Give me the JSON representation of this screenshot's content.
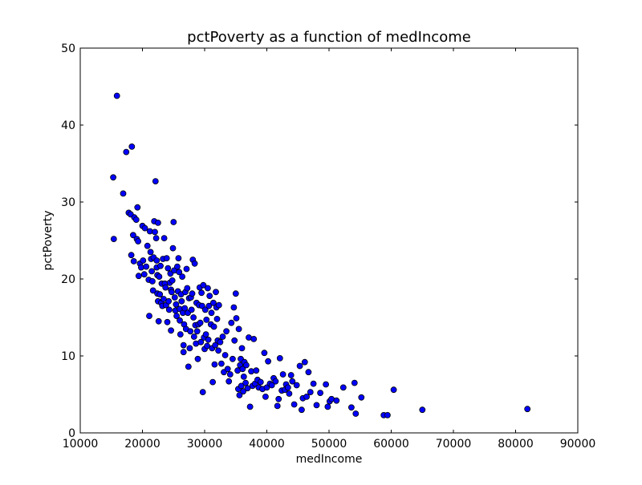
{
  "chart_data": {
    "type": "scatter",
    "title": "pctPoverty as a function of medIncome",
    "xlabel": "medIncome",
    "ylabel": "pctPoverty",
    "xlim": [
      10000,
      90000
    ],
    "ylim": [
      0,
      50
    ],
    "xticks": [
      10000,
      20000,
      30000,
      40000,
      50000,
      60000,
      70000,
      80000,
      90000
    ],
    "yticks": [
      0,
      10,
      20,
      30,
      40,
      50
    ],
    "grid": false,
    "marker_color": "#0000ff",
    "marker_edge_color": "#000000",
    "points": [
      [
        15300,
        33.2
      ],
      [
        15400,
        25.2
      ],
      [
        15900,
        43.8
      ],
      [
        16900,
        31.1
      ],
      [
        17400,
        36.5
      ],
      [
        17800,
        28.6
      ],
      [
        18300,
        37.2
      ],
      [
        18100,
        28.4
      ],
      [
        18200,
        23.1
      ],
      [
        18500,
        25.7
      ],
      [
        18600,
        22.3
      ],
      [
        18700,
        28.0
      ],
      [
        19000,
        27.7
      ],
      [
        19200,
        29.3
      ],
      [
        19100,
        25.2
      ],
      [
        19300,
        24.9
      ],
      [
        19400,
        20.4
      ],
      [
        19600,
        22.0
      ],
      [
        19800,
        21.5
      ],
      [
        20000,
        26.9
      ],
      [
        20100,
        22.4
      ],
      [
        20300,
        20.6
      ],
      [
        20400,
        26.6
      ],
      [
        20600,
        21.6
      ],
      [
        20800,
        24.3
      ],
      [
        21000,
        19.9
      ],
      [
        21100,
        15.2
      ],
      [
        21200,
        26.2
      ],
      [
        21300,
        23.5
      ],
      [
        21400,
        22.6
      ],
      [
        21500,
        21.0
      ],
      [
        21600,
        19.7
      ],
      [
        21700,
        18.5
      ],
      [
        21800,
        22.8
      ],
      [
        21900,
        27.5
      ],
      [
        22000,
        26.1
      ],
      [
        22100,
        32.7
      ],
      [
        22200,
        25.3
      ],
      [
        22300,
        22.4
      ],
      [
        22300,
        21.5
      ],
      [
        22400,
        20.5
      ],
      [
        22400,
        18.1
      ],
      [
        22500,
        17.1
      ],
      [
        22500,
        27.3
      ],
      [
        22600,
        14.5
      ],
      [
        22700,
        20.3
      ],
      [
        22800,
        18.0
      ],
      [
        22900,
        21.7
      ],
      [
        23000,
        16.9
      ],
      [
        23100,
        19.4
      ],
      [
        23200,
        16.5
      ],
      [
        23300,
        22.6
      ],
      [
        23400,
        17.4
      ],
      [
        23500,
        25.3
      ],
      [
        23600,
        19.4
      ],
      [
        23700,
        18.9
      ],
      [
        23800,
        16.6
      ],
      [
        23900,
        22.7
      ],
      [
        24000,
        14.4
      ],
      [
        24100,
        21.4
      ],
      [
        24200,
        17.1
      ],
      [
        24300,
        16.0
      ],
      [
        24400,
        19.5
      ],
      [
        24500,
        20.7
      ],
      [
        24600,
        18.6
      ],
      [
        24600,
        13.3
      ],
      [
        24700,
        18.3
      ],
      [
        24800,
        19.8
      ],
      [
        24900,
        24.0
      ],
      [
        25000,
        27.4
      ],
      [
        25100,
        21.1
      ],
      [
        25200,
        17.6
      ],
      [
        25300,
        15.9
      ],
      [
        25400,
        16.7
      ],
      [
        25500,
        15.2
      ],
      [
        25600,
        21.6
      ],
      [
        25700,
        18.4
      ],
      [
        25800,
        22.7
      ],
      [
        25900,
        20.9
      ],
      [
        26000,
        16.1
      ],
      [
        26000,
        14.6
      ],
      [
        26100,
        12.8
      ],
      [
        26200,
        18.0
      ],
      [
        26300,
        17.1
      ],
      [
        26400,
        20.3
      ],
      [
        26500,
        15.6
      ],
      [
        26600,
        11.4
      ],
      [
        26600,
        10.5
      ],
      [
        26700,
        14.1
      ],
      [
        26800,
        16.2
      ],
      [
        26900,
        18.3
      ],
      [
        27000,
        13.5
      ],
      [
        27100,
        21.3
      ],
      [
        27200,
        18.8
      ],
      [
        27300,
        15.6
      ],
      [
        27400,
        8.6
      ],
      [
        27500,
        17.5
      ],
      [
        27600,
        11.0
      ],
      [
        27700,
        13.2
      ],
      [
        27800,
        17.6
      ],
      [
        27900,
        16.0
      ],
      [
        28000,
        18.1
      ],
      [
        28100,
        22.5
      ],
      [
        28200,
        15.0
      ],
      [
        28300,
        12.5
      ],
      [
        28400,
        22.0
      ],
      [
        28500,
        14.0
      ],
      [
        28600,
        11.6
      ],
      [
        28700,
        16.9
      ],
      [
        28800,
        13.2
      ],
      [
        28900,
        9.6
      ],
      [
        29000,
        14.1
      ],
      [
        29100,
        16.6
      ],
      [
        29200,
        18.9
      ],
      [
        29300,
        14.3
      ],
      [
        29400,
        11.8
      ],
      [
        29500,
        18.2
      ],
      [
        29600,
        16.5
      ],
      [
        29700,
        5.3
      ],
      [
        29800,
        19.2
      ],
      [
        29900,
        12.4
      ],
      [
        30000,
        10.9
      ],
      [
        30100,
        16.0
      ],
      [
        30200,
        12.8
      ],
      [
        30300,
        14.7
      ],
      [
        30400,
        11.3
      ],
      [
        30500,
        18.8
      ],
      [
        30600,
        12.1
      ],
      [
        30700,
        16.5
      ],
      [
        30800,
        17.8
      ],
      [
        31000,
        14.1
      ],
      [
        31100,
        15.6
      ],
      [
        31200,
        11.0
      ],
      [
        31300,
        6.6
      ],
      [
        31400,
        16.9
      ],
      [
        31500,
        13.8
      ],
      [
        31600,
        8.9
      ],
      [
        31700,
        11.4
      ],
      [
        31800,
        18.3
      ],
      [
        31900,
        16.3
      ],
      [
        32000,
        14.8
      ],
      [
        32100,
        12.0
      ],
      [
        32200,
        10.7
      ],
      [
        32300,
        16.6
      ],
      [
        32500,
        11.8
      ],
      [
        32700,
        9.0
      ],
      [
        32900,
        12.5
      ],
      [
        33100,
        7.9
      ],
      [
        33300,
        10.1
      ],
      [
        33500,
        13.2
      ],
      [
        33700,
        8.3
      ],
      [
        33900,
        6.7
      ],
      [
        34100,
        7.6
      ],
      [
        34300,
        14.3
      ],
      [
        34500,
        9.6
      ],
      [
        34700,
        16.3
      ],
      [
        34800,
        12.0
      ],
      [
        35000,
        18.1
      ],
      [
        35100,
        14.9
      ],
      [
        35300,
        8.1
      ],
      [
        35400,
        5.7
      ],
      [
        35500,
        13.5
      ],
      [
        35600,
        4.9
      ],
      [
        35700,
        8.8
      ],
      [
        35800,
        9.6
      ],
      [
        35900,
        6.1
      ],
      [
        36000,
        11.0
      ],
      [
        36100,
        8.3
      ],
      [
        36200,
        5.4
      ],
      [
        36300,
        7.3
      ],
      [
        36400,
        9.2
      ],
      [
        36600,
        6.5
      ],
      [
        36700,
        8.8
      ],
      [
        36900,
        5.8
      ],
      [
        37100,
        12.4
      ],
      [
        37300,
        3.4
      ],
      [
        37500,
        8.0
      ],
      [
        37700,
        6.1
      ],
      [
        37900,
        12.2
      ],
      [
        38100,
        6.4
      ],
      [
        38300,
        8.1
      ],
      [
        38500,
        6.9
      ],
      [
        38700,
        5.9
      ],
      [
        39000,
        6.6
      ],
      [
        39300,
        5.7
      ],
      [
        39600,
        10.4
      ],
      [
        39800,
        4.7
      ],
      [
        40000,
        5.9
      ],
      [
        40200,
        9.3
      ],
      [
        40500,
        6.4
      ],
      [
        40800,
        6.2
      ],
      [
        41100,
        7.1
      ],
      [
        41400,
        6.7
      ],
      [
        41700,
        3.5
      ],
      [
        41900,
        4.4
      ],
      [
        42100,
        9.7
      ],
      [
        42400,
        5.5
      ],
      [
        42600,
        7.6
      ],
      [
        42900,
        5.6
      ],
      [
        43100,
        6.3
      ],
      [
        43400,
        5.9
      ],
      [
        43600,
        5.1
      ],
      [
        43900,
        7.5
      ],
      [
        44100,
        6.7
      ],
      [
        44400,
        3.7
      ],
      [
        44800,
        6.2
      ],
      [
        45300,
        8.7
      ],
      [
        45600,
        3.0
      ],
      [
        45800,
        4.5
      ],
      [
        46100,
        9.2
      ],
      [
        46400,
        4.7
      ],
      [
        46700,
        7.9
      ],
      [
        47000,
        5.3
      ],
      [
        47500,
        6.4
      ],
      [
        48000,
        3.6
      ],
      [
        48600,
        5.2
      ],
      [
        49500,
        6.3
      ],
      [
        49800,
        3.4
      ],
      [
        50100,
        4.1
      ],
      [
        50400,
        4.4
      ],
      [
        51200,
        4.2
      ],
      [
        52300,
        5.9
      ],
      [
        53600,
        3.3
      ],
      [
        54100,
        6.5
      ],
      [
        54300,
        2.5
      ],
      [
        55200,
        4.6
      ],
      [
        58800,
        2.3
      ],
      [
        59400,
        2.3
      ],
      [
        60400,
        5.6
      ],
      [
        65000,
        3.0
      ],
      [
        81900,
        3.1
      ]
    ]
  }
}
